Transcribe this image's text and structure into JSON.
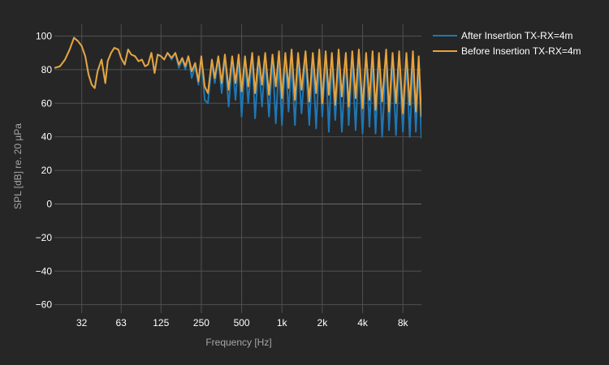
{
  "chart_data": {
    "type": "line",
    "title": "",
    "xlabel": "Frequency [Hz]",
    "ylabel": "SPL [dB] re. 20 µPa",
    "x_scale": "log",
    "xlim": [
      20,
      11000
    ],
    "ylim": [
      -65,
      107
    ],
    "x_ticks": [
      {
        "value": 32,
        "label": "32"
      },
      {
        "value": 63,
        "label": "63"
      },
      {
        "value": 125,
        "label": "125"
      },
      {
        "value": 250,
        "label": "250"
      },
      {
        "value": 500,
        "label": "500"
      },
      {
        "value": 1000,
        "label": "1k"
      },
      {
        "value": 2000,
        "label": "2k"
      },
      {
        "value": 4000,
        "label": "4k"
      },
      {
        "value": 8000,
        "label": "8k"
      }
    ],
    "y_ticks": [
      {
        "value": -60,
        "label": "−60"
      },
      {
        "value": -40,
        "label": "−40"
      },
      {
        "value": -20,
        "label": "−20"
      },
      {
        "value": 0,
        "label": "0"
      },
      {
        "value": 20,
        "label": "20"
      },
      {
        "value": 40,
        "label": "40"
      },
      {
        "value": 60,
        "label": "60"
      },
      {
        "value": 80,
        "label": "80"
      },
      {
        "value": 100,
        "label": "100"
      }
    ],
    "grid": true,
    "legend_position": "top-right",
    "series": [
      {
        "name": "After Insertion TX-RX=4m",
        "color": "#1f77b4",
        "x": [
          20,
          22,
          24,
          26,
          28,
          30,
          32,
          34,
          36,
          38,
          40,
          42,
          45,
          48,
          50,
          53,
          56,
          60,
          63,
          67,
          71,
          75,
          80,
          85,
          90,
          95,
          100,
          106,
          112,
          118,
          125,
          132,
          140,
          150,
          160,
          170,
          180,
          190,
          200,
          212,
          225,
          238,
          250,
          265,
          280,
          300,
          315,
          335,
          355,
          375,
          400,
          425,
          450,
          475,
          500,
          530,
          560,
          600,
          630,
          670,
          710,
          750,
          800,
          850,
          900,
          950,
          1000,
          1060,
          1120,
          1180,
          1250,
          1320,
          1400,
          1500,
          1600,
          1700,
          1800,
          1900,
          2000,
          2120,
          2240,
          2360,
          2500,
          2650,
          2800,
          3000,
          3150,
          3350,
          3550,
          3750,
          4000,
          4250,
          4500,
          4750,
          5000,
          5300,
          5600,
          6000,
          6300,
          6700,
          7100,
          7500,
          8000,
          8500,
          9000,
          9500,
          10000,
          10500,
          11000
        ],
        "y": [
          81,
          82,
          86,
          92,
          99,
          97,
          94,
          88,
          77,
          71,
          69,
          79,
          86,
          72,
          85,
          90,
          93,
          92,
          87,
          83,
          92,
          89,
          88,
          85,
          86,
          82,
          83,
          90,
          78,
          89,
          88,
          86,
          90,
          86,
          90,
          81,
          86,
          80,
          88,
          75,
          82,
          71,
          88,
          62,
          60,
          84,
          72,
          86,
          66,
          88,
          58,
          86,
          62,
          87,
          52,
          86,
          60,
          88,
          51,
          85,
          58,
          86,
          52,
          86,
          48,
          85,
          47,
          88,
          55,
          84,
          47,
          86,
          54,
          88,
          47,
          86,
          45,
          87,
          52,
          88,
          43,
          85,
          50,
          86,
          43,
          88,
          47,
          85,
          44,
          86,
          42,
          88,
          46,
          85,
          42,
          86,
          40,
          87,
          44,
          85,
          41,
          86,
          43,
          85,
          40,
          84,
          43,
          82,
          39
        ]
      },
      {
        "name": "Before Insertion TX-RX=4m",
        "color": "#e8a33d",
        "x": [
          20,
          22,
          24,
          26,
          28,
          30,
          32,
          34,
          36,
          38,
          40,
          42,
          45,
          48,
          50,
          53,
          56,
          60,
          63,
          67,
          71,
          75,
          80,
          85,
          90,
          95,
          100,
          106,
          112,
          118,
          125,
          132,
          140,
          150,
          160,
          170,
          180,
          190,
          200,
          212,
          225,
          238,
          250,
          265,
          280,
          300,
          315,
          335,
          355,
          375,
          400,
          425,
          450,
          475,
          500,
          530,
          560,
          600,
          630,
          670,
          710,
          750,
          800,
          850,
          900,
          950,
          1000,
          1060,
          1120,
          1180,
          1250,
          1320,
          1400,
          1500,
          1600,
          1700,
          1800,
          1900,
          2000,
          2120,
          2240,
          2360,
          2500,
          2650,
          2800,
          3000,
          3150,
          3350,
          3550,
          3750,
          4000,
          4250,
          4500,
          4750,
          5000,
          5300,
          5600,
          6000,
          6300,
          6700,
          7100,
          7500,
          8000,
          8500,
          9000,
          9500,
          10000,
          10500,
          11000
        ],
        "y": [
          81,
          82,
          86,
          92,
          99,
          97,
          94,
          88,
          77,
          71,
          69,
          79,
          86,
          72,
          85,
          90,
          93,
          92,
          87,
          83,
          92,
          89,
          88,
          85,
          86,
          82,
          83,
          90,
          78,
          89,
          88,
          86,
          90,
          87,
          90,
          83,
          87,
          82,
          88,
          79,
          84,
          73,
          88,
          70,
          66,
          86,
          75,
          88,
          72,
          89,
          68,
          88,
          72,
          89,
          67,
          88,
          70,
          90,
          66,
          88,
          71,
          90,
          65,
          89,
          70,
          91,
          63,
          90,
          69,
          92,
          62,
          90,
          68,
          91,
          61,
          90,
          66,
          92,
          60,
          91,
          65,
          90,
          59,
          92,
          64,
          90,
          58,
          91,
          63,
          92,
          57,
          90,
          62,
          91,
          56,
          90,
          61,
          92,
          55,
          90,
          60,
          91,
          54,
          90,
          59,
          91,
          55,
          88,
          52
        ]
      }
    ]
  }
}
